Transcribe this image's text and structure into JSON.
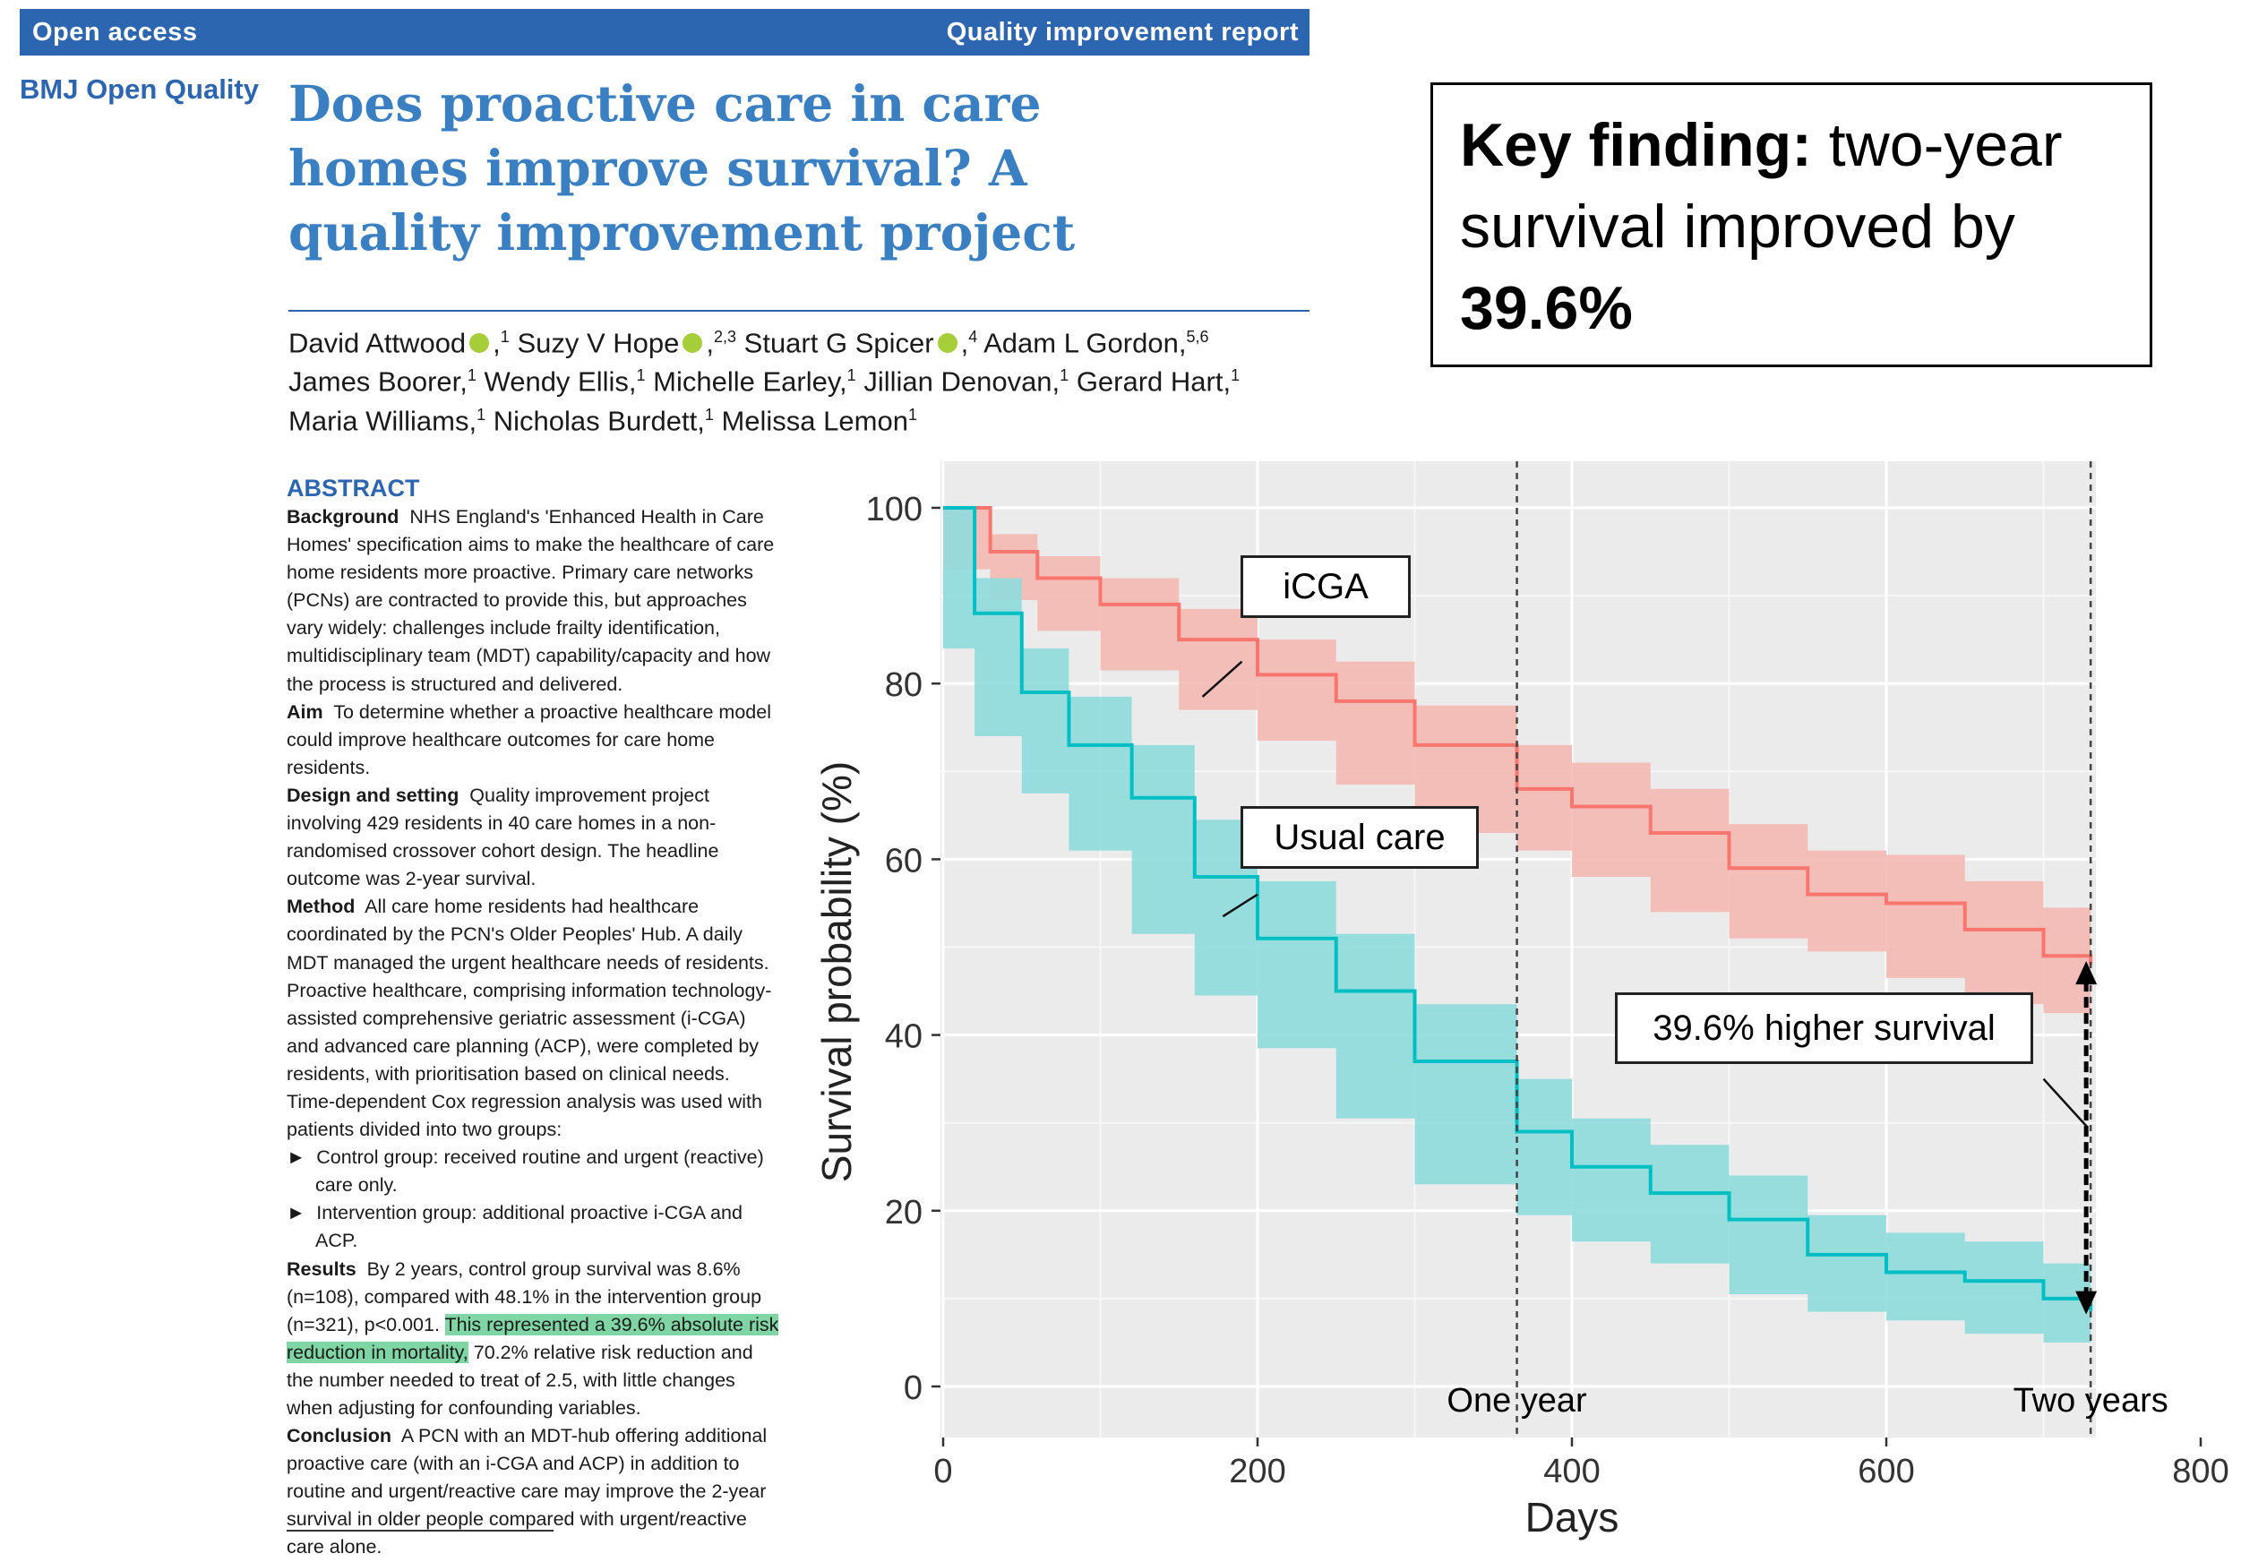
{
  "header": {
    "open_access": "Open access",
    "report_type": "Quality improvement report",
    "journal": "BMJ Open Quality",
    "title": "Does proactive care in care homes improve survival? A quality improvement project"
  },
  "authors": [
    {
      "name": "David Attwood",
      "aff": "1",
      "orcid": true
    },
    {
      "name": "Suzy V Hope",
      "aff": "2,3",
      "orcid": true
    },
    {
      "name": "Stuart G Spicer",
      "aff": "4",
      "orcid": true
    },
    {
      "name": "Adam L Gordon,",
      "aff": "5,6",
      "orcid": false
    },
    {
      "name": "James Boorer,",
      "aff": "1",
      "orcid": false
    },
    {
      "name": "Wendy Ellis,",
      "aff": "1",
      "orcid": false
    },
    {
      "name": "Michelle Earley,",
      "aff": "1",
      "orcid": false
    },
    {
      "name": "Jillian Denovan,",
      "aff": "1",
      "orcid": false
    },
    {
      "name": "Gerard Hart,",
      "aff": "1",
      "orcid": false
    },
    {
      "name": "Maria Williams,",
      "aff": "1",
      "orcid": false
    },
    {
      "name": "Nicholas Burdett,",
      "aff": "1",
      "orcid": false
    },
    {
      "name": "Melissa Lemon",
      "aff": "1",
      "orcid": false
    }
  ],
  "key_finding": {
    "label": "Key finding:",
    "text": "two-year survival improved by",
    "value": "39.6%"
  },
  "abstract": {
    "heading": "ABSTRACT",
    "background_label": "Background",
    "background": "NHS England's 'Enhanced Health in Care Homes' specification aims to make the healthcare of care home residents more proactive. Primary care networks (PCNs) are contracted to provide this, but approaches vary widely: challenges include frailty identification, multidisciplinary team (MDT) capability/capacity and how the process is structured and delivered.",
    "aim_label": "Aim",
    "aim": "To determine whether a proactive healthcare model could improve healthcare outcomes for care home residents.",
    "design_label": "Design and setting",
    "design": "Quality improvement project involving 429 residents in 40 care homes in a non-randomised crossover cohort design. The headline outcome was 2-year survival.",
    "method_label": "Method",
    "method": "All care home residents had healthcare coordinated by the PCN's Older Peoples' Hub. A daily MDT managed the urgent healthcare needs of residents. Proactive healthcare, comprising information technology-assisted comprehensive geriatric assessment (i-CGA) and advanced care planning (ACP), were completed by residents, with prioritisation based on clinical needs. Time-dependent Cox regression analysis was used with patients divided into two groups:",
    "bullet1": "Control group: received routine and urgent (reactive) care only.",
    "bullet2": "Intervention group: additional proactive i-CGA and ACP.",
    "results_label": "Results",
    "results_pre": "By 2 years, control group survival was 8.6% (n=108), compared with 48.1% in the intervention group (n=321), p<0.001.",
    "results_highlight": "This represented a 39.6% absolute risk reduction in mortality,",
    "results_post": "70.2% relative risk reduction and the number needed to treat of 2.5, with little changes when adjusting for confounding variables.",
    "conclusion_label": "Conclusion",
    "conclusion": "A PCN with an MDT-hub offering additional proactive care (with an i-CGA and ACP) in addition to routine and urgent/reactive care may improve the 2-year survival in older people compared with urgent/reactive care alone."
  },
  "chart_data": {
    "type": "line",
    "xlabel": "Days",
    "ylabel": "Survival probability (%)",
    "xlim": [
      0,
      800
    ],
    "ylim": [
      0,
      100
    ],
    "x_ticks": [
      0,
      200,
      400,
      600,
      800
    ],
    "y_ticks": [
      0,
      20,
      40,
      60,
      80,
      100
    ],
    "grid": true,
    "series": [
      {
        "name": "iCGA",
        "color": "#f8766d",
        "band_color": "#f4b8b2",
        "x": [
          0,
          30,
          60,
          100,
          150,
          200,
          250,
          300,
          365,
          400,
          450,
          500,
          550,
          600,
          650,
          700,
          730
        ],
        "y": [
          100,
          95,
          92,
          89,
          85,
          81,
          78,
          73,
          68,
          66,
          63,
          59,
          56,
          55,
          52,
          49,
          48
        ],
        "lower": [
          100,
          93,
          89.5,
          86,
          81.5,
          77,
          73.5,
          68.5,
          63,
          61,
          58,
          54,
          51,
          49.5,
          46.5,
          43.5,
          42.5
        ],
        "upper": [
          100,
          97,
          94.5,
          92,
          88.5,
          85,
          82.5,
          77.5,
          73,
          71,
          68,
          64,
          61,
          60.5,
          57.5,
          54.5,
          53.5
        ]
      },
      {
        "name": "Usual care",
        "color": "#00bfc4",
        "band_color": "#8fdbdd",
        "x": [
          0,
          20,
          50,
          80,
          120,
          160,
          200,
          250,
          300,
          365,
          400,
          450,
          500,
          550,
          600,
          650,
          700,
          730
        ],
        "y": [
          100,
          88,
          79,
          73,
          67,
          58,
          51,
          45,
          37,
          29,
          25,
          22,
          19,
          15,
          13,
          12,
          10,
          8.6
        ],
        "lower": [
          100,
          84,
          74,
          67.5,
          61,
          51.5,
          44.5,
          38.5,
          30.5,
          23,
          19.5,
          16.5,
          14,
          10.5,
          8.5,
          7.5,
          6,
          5
        ],
        "upper": [
          100,
          92,
          84,
          78.5,
          73,
          64.5,
          57.5,
          51.5,
          43.5,
          35,
          30.5,
          27.5,
          24,
          19.5,
          17.5,
          16.5,
          14,
          12.5
        ]
      }
    ],
    "reference_lines": [
      {
        "x": 365,
        "label": "One year"
      },
      {
        "x": 730,
        "label": "Two years"
      }
    ],
    "annotations": [
      {
        "text": "iCGA",
        "points_to_series": "iCGA"
      },
      {
        "text": "Usual care",
        "points_to_series": "Usual care"
      },
      {
        "text": "39.6% higher survival",
        "between": [
          8.6,
          48.1
        ],
        "at_x": 730
      }
    ]
  }
}
